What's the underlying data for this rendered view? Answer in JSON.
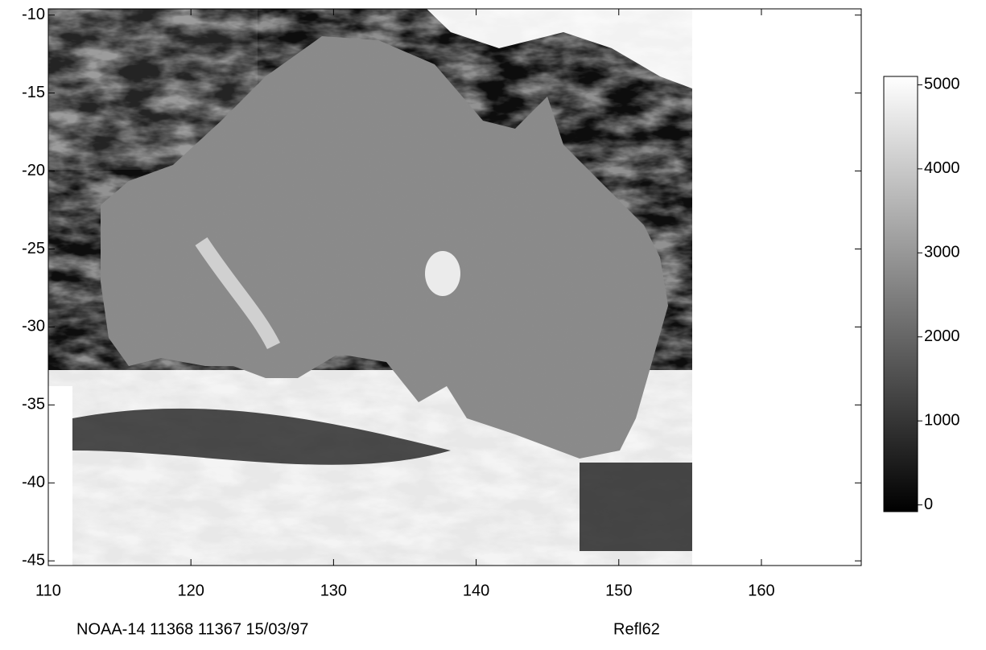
{
  "chart_data": {
    "type": "image",
    "colormap": "gray",
    "xlim": [
      110,
      167
    ],
    "xticks": [
      110,
      120,
      130,
      140,
      150,
      160
    ],
    "ylim": [
      -45.3,
      -9.6
    ],
    "yticks": [
      -10,
      -15,
      -20,
      -25,
      -30,
      -35,
      -40,
      -45
    ],
    "image_xlim": [
      110,
      155.2
    ],
    "colorbar": {
      "lim": [
        -80,
        5100
      ],
      "ticks": [
        0,
        1000,
        2000,
        3000,
        4000,
        5000
      ]
    },
    "annotations": [
      "NOAA-14 11368 11367 15/03/97",
      "Refl62"
    ]
  }
}
